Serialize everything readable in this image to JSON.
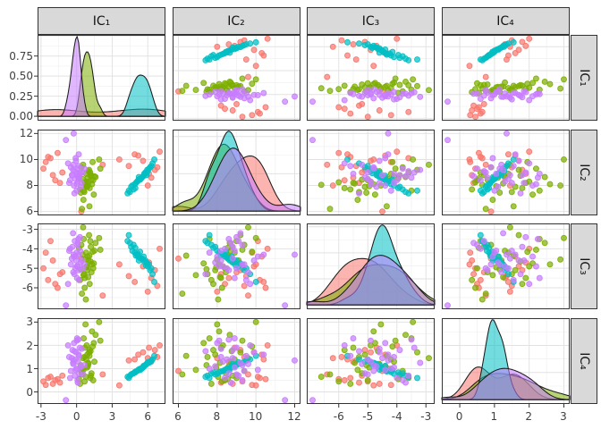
{
  "figure": {
    "kind": "scatterplot-matrix",
    "description": "4x4 pairs plot of independent components with density diagonals and grouped scatter points"
  },
  "chart_data": {
    "type": "scatter",
    "matrix": true,
    "diagonal": "density",
    "legend": "none",
    "grid": "on",
    "variables": [
      {
        "id": "IC1",
        "label": "IC₁",
        "ticks": [
          -3,
          0,
          3,
          6
        ],
        "tick_labels": [
          "-3",
          "0",
          "3",
          "6"
        ]
      },
      {
        "id": "IC2",
        "label": "IC₂",
        "ticks": [
          6,
          8,
          10,
          12
        ],
        "tick_labels": [
          "6",
          "8",
          "10",
          "12"
        ]
      },
      {
        "id": "IC3",
        "label": "IC₃",
        "ticks": [
          -6,
          -5,
          -4,
          -3
        ],
        "tick_labels": [
          "-6",
          "-5",
          "-4",
          "-3"
        ]
      },
      {
        "id": "IC4",
        "label": "IC₄",
        "ticks": [
          0,
          1,
          2,
          3
        ],
        "tick_labels": [
          "0",
          "1",
          "2",
          "3"
        ]
      }
    ],
    "density_axis": {
      "ticks": [
        0,
        0.25,
        0.5,
        0.75
      ],
      "tick_labels": [
        "0.00",
        "0.25",
        "0.50",
        "0.75"
      ]
    },
    "style": {
      "panel_background": "#FFFFFF",
      "panel_border": "#333333",
      "grid_major": "#E2E2E2",
      "grid_minor": "#F0F0F0",
      "strip_background": "#D9D9D9",
      "strip_text": "#141414",
      "axis_text": "#404040",
      "density_outline": "#1C1C1C"
    },
    "groups": [
      {
        "name": "salmon",
        "color": "#F8766D",
        "points": [
          [
            -2.8,
            9.3,
            -5.0,
            0.45
          ],
          [
            -2.4,
            10.2,
            -5.6,
            0.6
          ],
          [
            -2.0,
            8.8,
            -4.6,
            0.35
          ],
          [
            -1.6,
            10.5,
            -6.0,
            0.55
          ],
          [
            -1.2,
            9.0,
            -5.2,
            0.7
          ],
          [
            -2.6,
            9.8,
            -4.2,
            0.3
          ],
          [
            -1.8,
            8.4,
            -5.8,
            0.5
          ],
          [
            3.6,
            10.0,
            -4.8,
            0.28
          ],
          [
            4.4,
            9.5,
            -5.4,
            1.35
          ],
          [
            5.2,
            10.3,
            -4.4,
            1.6
          ],
          [
            6.0,
            8.0,
            -6.2,
            1.45
          ],
          [
            6.6,
            9.2,
            -5.1,
            1.8
          ],
          [
            7.0,
            10.6,
            -4.0,
            2.0
          ],
          [
            6.3,
            8.6,
            -5.5,
            1.3
          ],
          [
            5.6,
            9.9,
            -4.9,
            1.7
          ],
          [
            6.8,
            9.4,
            -5.9,
            1.5
          ],
          [
            -2.2,
            10.1,
            -3.6,
            0.65
          ],
          [
            -1.4,
            8.2,
            -5.3,
            0.4
          ],
          [
            0.4,
            6.0,
            -4.5,
            0.9
          ],
          [
            2.2,
            9.6,
            -6.4,
            0.75
          ],
          [
            6.1,
            8.9,
            -4.7,
            1.9
          ],
          [
            4.9,
            10.4,
            -5.7,
            1.4
          ]
        ]
      },
      {
        "name": "green",
        "color": "#7CAE00",
        "points": [
          [
            0.5,
            8.5,
            -4.3,
            1.0
          ],
          [
            0.9,
            7.9,
            -5.1,
            1.6
          ],
          [
            1.2,
            8.8,
            -3.9,
            0.7
          ],
          [
            0.7,
            8.2,
            -5.5,
            1.9
          ],
          [
            1.0,
            9.1,
            -4.6,
            1.2
          ],
          [
            0.6,
            7.6,
            -3.5,
            2.3
          ],
          [
            1.4,
            8.4,
            -5.0,
            0.5
          ],
          [
            0.8,
            8.9,
            -4.2,
            1.4
          ],
          [
            1.1,
            7.8,
            -5.8,
            1.8
          ],
          [
            0.4,
            9.4,
            -3.8,
            0.9
          ],
          [
            1.3,
            8.1,
            -4.8,
            2.6
          ],
          [
            0.95,
            8.6,
            -4.4,
            1.1
          ],
          [
            0.65,
            7.5,
            -5.3,
            1.5
          ],
          [
            1.15,
            9.0,
            -3.6,
            0.6
          ],
          [
            0.85,
            8.3,
            -4.9,
            2.0
          ],
          [
            1.5,
            8.7,
            -4.1,
            1.3
          ],
          [
            0.3,
            7.7,
            -5.6,
            0.35
          ],
          [
            1.05,
            9.2,
            -3.3,
            1.7
          ],
          [
            0.75,
            8.0,
            -4.55,
            2.9
          ],
          [
            1.25,
            8.45,
            -5.2,
            0.8
          ],
          [
            0.55,
            9.6,
            -2.9,
            1.45
          ],
          [
            1.45,
            7.3,
            -4.75,
            2.1
          ],
          [
            0.2,
            8.55,
            -3.95,
            0.55
          ],
          [
            0.98,
            8.15,
            -5.45,
            1.25
          ],
          [
            1.35,
            9.8,
            -4.15,
            1.95
          ],
          [
            0.45,
            6.2,
            -6.3,
            0.75
          ],
          [
            1.6,
            8.65,
            -3.7,
            2.45
          ],
          [
            0.88,
            7.95,
            -4.95,
            1.05
          ],
          [
            1.08,
            6.4,
            -4.35,
            1.55
          ],
          [
            0.68,
            8.25,
            -6.0,
            0.45
          ],
          [
            1.9,
            10.0,
            -3.45,
            3.0
          ],
          [
            0.35,
            7.45,
            -5.05,
            1.15
          ],
          [
            1.18,
            8.75,
            -4.65,
            1.75
          ],
          [
            0.78,
            8.05,
            -6.6,
            0.65
          ],
          [
            2.0,
            9.3,
            -4.05,
            2.2
          ],
          [
            0.58,
            6.9,
            -5.35,
            0.95
          ]
        ]
      },
      {
        "name": "teal",
        "color": "#00BFC4",
        "points": [
          [
            5.2,
            8.4,
            -4.4,
            0.95
          ],
          [
            5.8,
            9.0,
            -4.6,
            1.15
          ],
          [
            4.9,
            8.1,
            -4.2,
            0.85
          ],
          [
            6.1,
            9.3,
            -4.8,
            1.25
          ],
          [
            5.5,
            8.6,
            -4.5,
            1.0
          ],
          [
            4.6,
            7.9,
            -3.9,
            0.75
          ],
          [
            5.9,
            8.8,
            -4.7,
            1.2
          ],
          [
            5.1,
            8.3,
            -4.3,
            0.9
          ],
          [
            6.3,
            9.5,
            -5.0,
            1.35
          ],
          [
            4.8,
            7.7,
            -3.8,
            0.8
          ],
          [
            5.6,
            8.7,
            -4.55,
            1.05
          ],
          [
            5.3,
            8.5,
            -4.45,
            0.98
          ],
          [
            6.0,
            9.1,
            -4.9,
            1.28
          ],
          [
            4.5,
            7.5,
            -3.7,
            0.7
          ],
          [
            5.7,
            8.9,
            -4.65,
            1.1
          ],
          [
            5.0,
            8.2,
            -4.35,
            0.88
          ],
          [
            6.4,
            9.7,
            -5.3,
            1.4
          ],
          [
            4.3,
            7.4,
            -3.6,
            0.65
          ],
          [
            5.45,
            8.55,
            -4.5,
            1.02
          ],
          [
            5.95,
            9.2,
            -4.75,
            1.22
          ],
          [
            4.7,
            8.0,
            -4.1,
            0.78
          ],
          [
            5.25,
            8.65,
            -4.6,
            0.96
          ],
          [
            6.2,
            9.4,
            -5.1,
            1.3
          ],
          [
            4.95,
            7.8,
            -3.95,
            0.84
          ],
          [
            5.65,
            8.75,
            -4.4,
            1.12
          ],
          [
            5.15,
            8.35,
            -4.25,
            0.92
          ],
          [
            6.55,
            10.0,
            -5.7,
            1.55
          ],
          [
            4.4,
            7.6,
            -3.3,
            0.6
          ],
          [
            5.85,
            8.95,
            -4.85,
            1.18
          ],
          [
            5.35,
            8.45,
            -4.15,
            0.94
          ]
        ]
      },
      {
        "name": "purple",
        "color": "#C77CFF",
        "points": [
          [
            -0.62,
            8.2,
            -4.1,
            1.5
          ],
          [
            -0.48,
            9.4,
            -4.8,
            0.9
          ],
          [
            -0.35,
            8.8,
            -3.9,
            1.8
          ],
          [
            -0.28,
            9.6,
            -5.2,
            1.2
          ],
          [
            -0.22,
            8.0,
            -4.4,
            2.1
          ],
          [
            -0.15,
            9.1,
            -3.6,
            0.7
          ],
          [
            -0.1,
            8.5,
            -5.0,
            1.4
          ],
          [
            -0.05,
            9.9,
            -4.6,
            1.7
          ],
          [
            0.0,
            7.6,
            -4.2,
            1.0
          ],
          [
            0.04,
            8.9,
            -5.5,
            2.3
          ],
          [
            0.08,
            9.3,
            -3.8,
            0.5
          ],
          [
            0.12,
            8.3,
            -4.9,
            1.3
          ],
          [
            0.18,
            10.4,
            -4.3,
            1.6
          ],
          [
            0.22,
            8.6,
            -5.1,
            0.8
          ],
          [
            0.28,
            9.0,
            -3.4,
            1.9
          ],
          [
            0.35,
            7.9,
            -4.7,
            1.1
          ],
          [
            -0.72,
            9.7,
            -5.8,
            2.0
          ],
          [
            -0.55,
            8.4,
            -4.0,
            0.6
          ],
          [
            -0.4,
            8.8,
            -4.5,
            1.45
          ],
          [
            -0.3,
            9.2,
            -3.2,
            1.25
          ],
          [
            -0.18,
            7.4,
            -5.3,
            1.75
          ],
          [
            -0.08,
            10.1,
            -4.4,
            0.95
          ],
          [
            0.02,
            8.1,
            -4.9,
            2.2
          ],
          [
            0.1,
            8.7,
            -3.7,
            0.4
          ],
          [
            0.2,
            9.5,
            -5.6,
            1.55
          ],
          [
            0.3,
            8.9,
            -4.1,
            1.05
          ],
          [
            0.42,
            8.2,
            -4.6,
            1.85
          ],
          [
            0.55,
            9.0,
            -5.0,
            0.75
          ],
          [
            -0.9,
            11.5,
            -6.9,
            -0.35
          ],
          [
            -0.25,
            12.0,
            -4.3,
            1.35
          ],
          [
            0.15,
            8.6,
            -3.5,
            2.25
          ],
          [
            0.65,
            9.3,
            -4.8,
            1.15
          ]
        ]
      }
    ]
  }
}
